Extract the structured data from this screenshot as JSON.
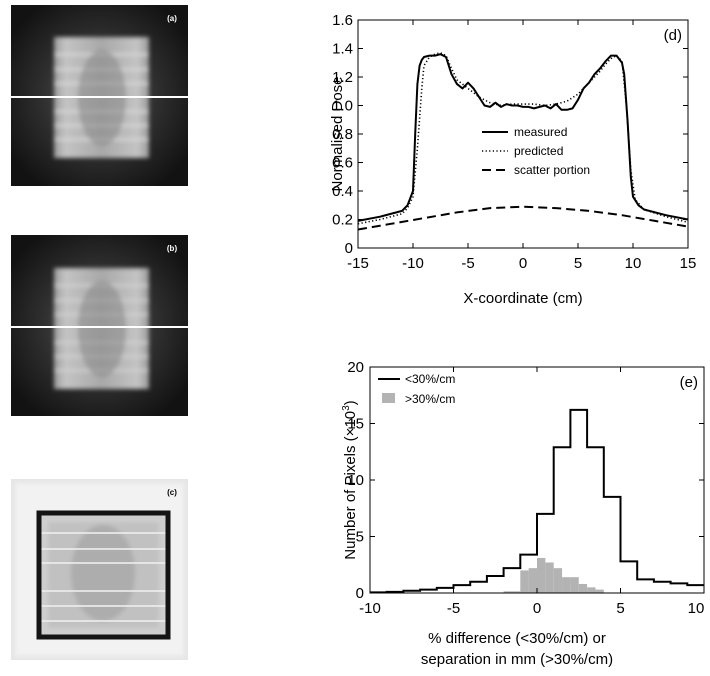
{
  "figure": {
    "panel_a": {
      "label": "(a)"
    },
    "panel_b": {
      "label": "(b)"
    },
    "panel_c": {
      "label": "(c)"
    }
  },
  "colors": {
    "line": "#000000",
    "gray_fill": "#b3b3b3"
  },
  "chart_data": [
    {
      "id": "d",
      "type": "line",
      "panel_label": "(d)",
      "xlabel": "X-coordinate (cm)",
      "ylabel": "Normalised Dose",
      "xlim": [
        -15,
        15
      ],
      "ylim": [
        0,
        1.6
      ],
      "xticks": [
        -15,
        -10,
        -5,
        0,
        5,
        10,
        15
      ],
      "yticks": [
        0,
        0.2,
        0.4,
        0.6,
        0.8,
        1.0,
        1.2,
        1.4,
        1.6
      ],
      "ytick_labels": [
        "0",
        "0.2",
        "0.4",
        "0.6",
        "0.8",
        "1.0",
        "1.2",
        "1.4",
        "1.6"
      ],
      "legend_position": "center",
      "grid": false,
      "series": [
        {
          "name": "measured",
          "style": "solid",
          "x": [
            -15,
            -13,
            -11,
            -10.5,
            -10,
            -9.8,
            -9.6,
            -9.4,
            -9.2,
            -9.0,
            -8.5,
            -8,
            -7.5,
            -7,
            -6.5,
            -6,
            -5.5,
            -5,
            -4.5,
            -4,
            -3.5,
            -3,
            -2.5,
            -2,
            -1.5,
            -1,
            -0.5,
            0,
            0.5,
            1,
            1.5,
            2,
            2.5,
            3,
            3.5,
            4,
            4.5,
            5,
            5.5,
            6,
            6.5,
            7,
            7.5,
            8,
            8.5,
            9,
            9.2,
            9.5,
            9.8,
            10,
            10.5,
            11,
            13,
            15
          ],
          "y": [
            0.19,
            0.22,
            0.26,
            0.3,
            0.4,
            0.8,
            1.15,
            1.28,
            1.32,
            1.34,
            1.35,
            1.35,
            1.36,
            1.34,
            1.22,
            1.15,
            1.12,
            1.16,
            1.12,
            1.06,
            1.0,
            0.99,
            1.02,
            0.99,
            1.01,
            1.0,
            1.0,
            0.99,
            0.99,
            0.98,
            0.99,
            1.0,
            0.98,
            1.01,
            0.97,
            0.97,
            0.98,
            1.04,
            1.12,
            1.16,
            1.22,
            1.26,
            1.31,
            1.35,
            1.35,
            1.3,
            1.22,
            0.9,
            0.5,
            0.36,
            0.3,
            0.27,
            0.23,
            0.2
          ]
        },
        {
          "name": "predicted",
          "style": "dotted",
          "x": [
            -15,
            -13,
            -11,
            -10.5,
            -10,
            -9.6,
            -9.2,
            -9.0,
            -8.5,
            -8,
            -7.5,
            -7,
            -6.5,
            -6,
            -5,
            -4,
            -3,
            -2,
            -1,
            0,
            1,
            2,
            3,
            4,
            5,
            6,
            7,
            7.5,
            8,
            8.5,
            9,
            9.4,
            9.8,
            10.2,
            11,
            13,
            15
          ],
          "y": [
            0.17,
            0.2,
            0.24,
            0.28,
            0.36,
            0.7,
            1.12,
            1.28,
            1.34,
            1.36,
            1.37,
            1.35,
            1.26,
            1.18,
            1.12,
            1.06,
            1.02,
            1.0,
            1.01,
            1.01,
            1.01,
            1.0,
            1.01,
            1.03,
            1.08,
            1.16,
            1.24,
            1.29,
            1.33,
            1.35,
            1.31,
            1.0,
            0.55,
            0.34,
            0.27,
            0.22,
            0.18
          ]
        },
        {
          "name": "scatter portion",
          "style": "dashed",
          "x": [
            -15,
            -12,
            -9,
            -6,
            -3,
            0,
            3,
            6,
            9,
            12,
            15
          ],
          "y": [
            0.13,
            0.17,
            0.21,
            0.25,
            0.28,
            0.29,
            0.28,
            0.26,
            0.23,
            0.19,
            0.15
          ]
        }
      ]
    },
    {
      "id": "e",
      "type": "histogram",
      "panel_label": "(e)",
      "xlabel_line1": "% difference (<30%/cm) or",
      "xlabel_line2": "separation in mm (>30%/cm)",
      "ylabel": "Number of Pixels (×10³)",
      "ylabel_base": "Number of Pixels (×10",
      "ylabel_exp": "3",
      "ylabel_close": ")",
      "xlim": [
        -10,
        10
      ],
      "ylim": [
        0,
        20
      ],
      "xticks": [
        -10,
        -5,
        0,
        5,
        10
      ],
      "yticks": [
        0,
        5,
        10,
        15,
        20
      ],
      "legend_position": "top-left",
      "series": [
        {
          "name": "<30%/cm",
          "style": "step",
          "bin_edges": [
            -10,
            -9,
            -8,
            -7,
            -6,
            -5,
            -4,
            -3,
            -2,
            -1,
            0,
            1,
            2,
            3,
            4,
            5,
            6,
            7,
            8,
            9,
            10
          ],
          "counts": [
            0.05,
            0.1,
            0.2,
            0.3,
            0.45,
            0.7,
            1.0,
            1.5,
            2.2,
            3.4,
            7.0,
            12.9,
            16.2,
            12.9,
            8.5,
            2.8,
            1.2,
            1.0,
            0.85,
            0.7
          ]
        },
        {
          "name": ">30%/cm",
          "style": "filled",
          "bin_edges": [
            -2,
            -1,
            -0.5,
            0,
            0.5,
            1,
            1.5,
            2,
            2.5,
            3,
            3.5,
            4
          ],
          "counts": [
            0.15,
            2.0,
            2.2,
            3.1,
            2.7,
            2.2,
            1.4,
            1.4,
            0.8,
            0.5,
            0.3
          ]
        }
      ]
    }
  ]
}
